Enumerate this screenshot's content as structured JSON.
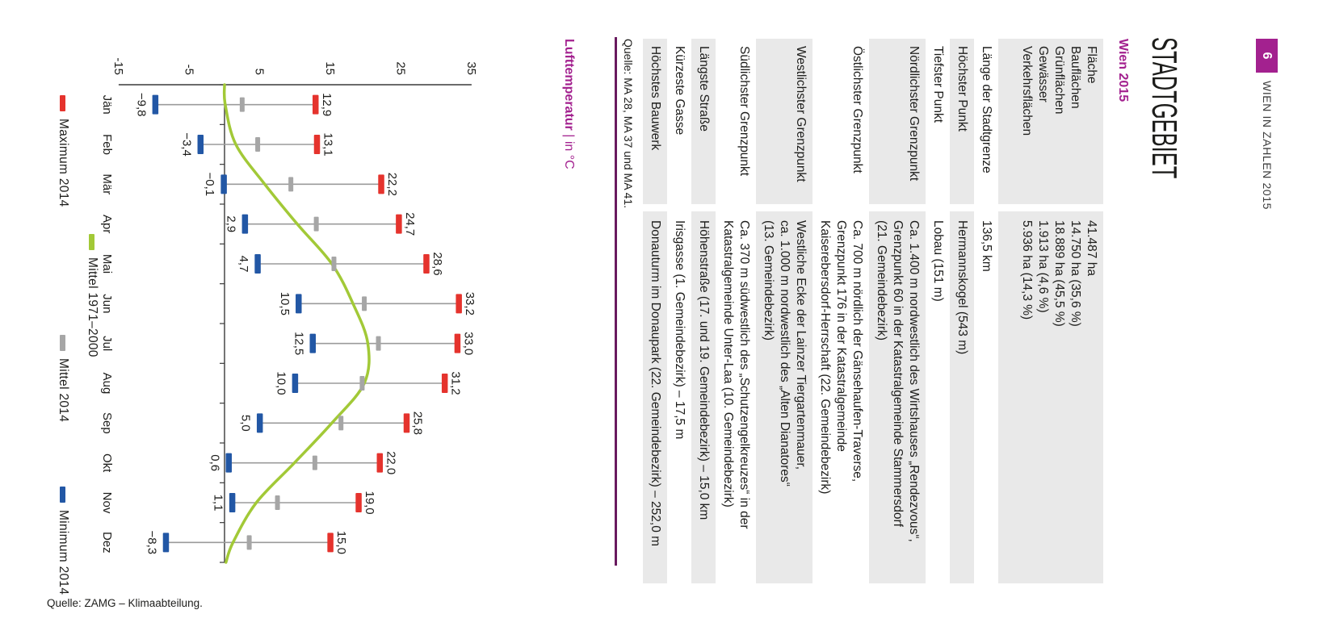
{
  "colors": {
    "magenta": "#a3218f",
    "dark_rule": "#691a5f",
    "text": "#1d1d1b",
    "header_text": "#3d3d3d",
    "row_shade": "#e9e9e9",
    "red": "#e5332d",
    "blue": "#2257a5",
    "green": "#a2c937",
    "gray": "#a6a6a6",
    "axis": "#3a3a3a",
    "range_line": "#9b9b9b"
  },
  "page": {
    "header": {
      "page_number": "6",
      "publication": "WIEN IN ZAHLEN 2015"
    },
    "title": "STADTGEBIET",
    "subtitle": "Wien 2015",
    "table": {
      "rows": [
        {
          "shaded": true,
          "labels": [
            "Fläche",
            "Bauflächen",
            "Grünflächen",
            "Gewässer",
            "Verkehrsflächen"
          ],
          "values": [
            "41.487 ha",
            "14.750 ha (35,6 %)",
            "18.889 ha (45,5 %)",
            "1.913 ha (4,6 %)",
            "5.936 ha (14,3 %)"
          ]
        },
        {
          "shaded": false,
          "labels": [
            "Länge der Stadtgrenze"
          ],
          "values": [
            "136,5 km"
          ]
        },
        {
          "shaded": true,
          "labels": [
            "Höchster Punkt"
          ],
          "values": [
            "Hermannskogel (543 m)"
          ]
        },
        {
          "shaded": false,
          "labels": [
            "Tiefster Punkt"
          ],
          "values": [
            "Lobau (151 m)"
          ]
        },
        {
          "shaded": true,
          "labels": [
            "Nördlichster Grenzpunkt"
          ],
          "values": [
            "Ca. 1.400 m nordwestlich des Wirtshauses „Rendezvous“,",
            "Grenzpunkt 60 in der Katastralgemeinde Stammersdorf",
            "(21. Gemeindebezirk)"
          ]
        },
        {
          "shaded": false,
          "labels": [
            "Östlichster Grenzpunkt"
          ],
          "values": [
            "Ca. 700 m nördlich der Gänsehaufen-Traverse,",
            "Grenzpunkt 176 in der Katastralgemeinde",
            "Kaiserebersdorf-Herrschaft (22. Gemeindebezirk)"
          ]
        },
        {
          "shaded": true,
          "labels": [
            "Westlichster Grenzpunkt"
          ],
          "values": [
            "Westliche Ecke der Lainzer Tiergartenmauer,",
            "ca. 1.000 m nordwestlich des „Alten Dianatores“",
            "(13. Gemeindebezirk)"
          ]
        },
        {
          "shaded": false,
          "labels": [
            "Südlichster Grenzpunkt"
          ],
          "values": [
            "Ca. 370 m südwestlich des „Schutzengelkreuzes“ in der",
            "Katastralgemeinde Unter-Laa (10. Gemeindebezirk)"
          ]
        },
        {
          "shaded": true,
          "labels": [
            "Längste Straße"
          ],
          "values": [
            "Höhenstraße (17. und 19. Gemeindebezirk) – 15,0 km"
          ]
        },
        {
          "shaded": false,
          "labels": [
            "Kürzeste Gasse"
          ],
          "values": [
            "Irisgasse (1. Gemeindebezirk) – 17,5 m"
          ]
        },
        {
          "shaded": true,
          "labels": [
            "Höchstes Bauwerk"
          ],
          "values": [
            "Donauturm im Donaupark (22. Gemeindebezirk) – 252,0 m"
          ]
        }
      ],
      "source": "Quelle: MA 28, MA 37 und MA 41."
    }
  },
  "chart_data": {
    "type": "range-bar",
    "title": "Lufttemperatur",
    "unit_label": "| in °C",
    "categories": [
      "Jän",
      "Feb",
      "Mär",
      "Apr",
      "Mai",
      "Jun",
      "Jul",
      "Aug",
      "Sep",
      "Okt",
      "Nov",
      "Dez"
    ],
    "ylim": [
      -15,
      35
    ],
    "yticks": {
      "values": [
        -15,
        -5,
        5,
        15,
        25,
        35
      ],
      "labels": [
        "-15",
        "-5",
        "5",
        "15",
        "25",
        "35"
      ]
    },
    "grid": false,
    "series": [
      {
        "name": "Maximum 2014",
        "color_key": "red",
        "style": "tick",
        "values": [
          12.9,
          13.1,
          22.2,
          24.7,
          28.6,
          33.2,
          33.0,
          31.2,
          25.8,
          22.0,
          19.0,
          15.0
        ],
        "labels": [
          "12,9",
          "13,1",
          "22,2",
          "24,7",
          "28,6",
          "33,2",
          "33,0",
          "31,2",
          "25,8",
          "22,0",
          "19,0",
          "15,0"
        ]
      },
      {
        "name": "Mittel 1971–2000",
        "color_key": "green",
        "style": "smooth-line",
        "estimated": true,
        "values": [
          0.1,
          1.6,
          5.7,
          10.3,
          15.2,
          18.2,
          20.3,
          19.8,
          15.2,
          9.9,
          4.5,
          1.2
        ]
      },
      {
        "name": "Mittel 2014",
        "color_key": "gray",
        "style": "tick-small",
        "estimated": true,
        "values": [
          2.5,
          4.7,
          9.4,
          13.0,
          15.5,
          19.8,
          21.8,
          19.5,
          16.5,
          12.8,
          7.5,
          3.5
        ]
      },
      {
        "name": "Minimum 2014",
        "color_key": "blue",
        "style": "tick",
        "values": [
          -9.8,
          -3.4,
          -0.1,
          2.9,
          4.7,
          10.5,
          12.5,
          10.0,
          5.0,
          0.6,
          1.1,
          -8.3
        ],
        "labels": [
          "−9,8",
          "−3,4",
          "−0,1",
          "2,9",
          "4,7",
          "10,5",
          "12,5",
          "10,0",
          "5,0",
          "0,6",
          "1,1",
          "−8,3"
        ]
      }
    ],
    "legend": {
      "row1": [
        {
          "name": "Mittel 1971–2000",
          "color_key": "green"
        }
      ],
      "row2": [
        {
          "name": "Maximum 2014",
          "color_key": "red"
        },
        {
          "name": "Mittel 2014",
          "color_key": "gray"
        },
        {
          "name": "Minimum 2014",
          "color_key": "blue"
        }
      ],
      "position": "bottom"
    },
    "source": "Quelle: ZAMG – Klimaabteilung."
  }
}
